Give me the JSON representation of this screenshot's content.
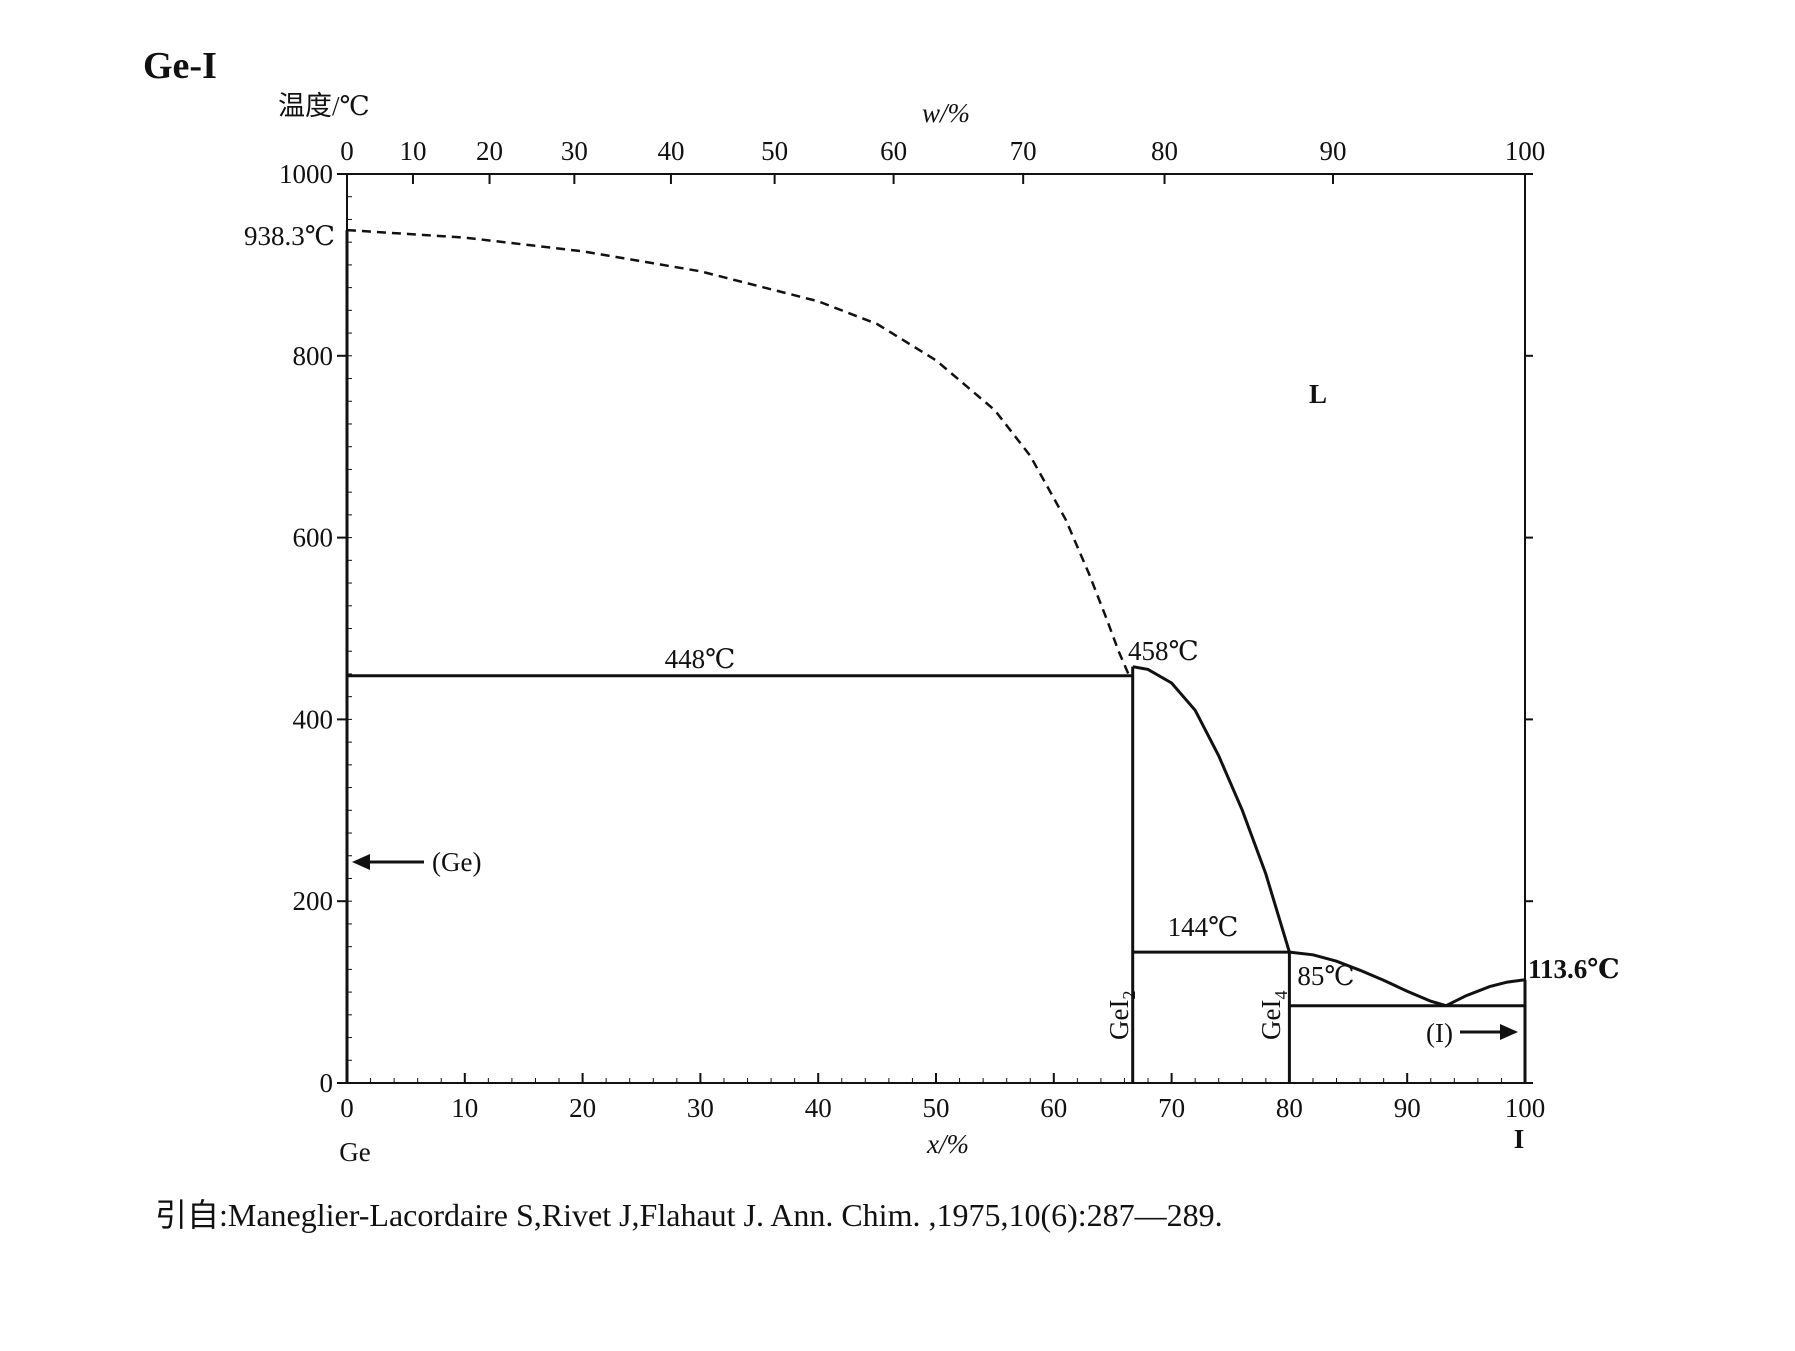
{
  "chart_data": {
    "type": "line",
    "title": "Ge-I",
    "ylabel": "温度/℃",
    "xlabel_top": "w/%",
    "xlabel_bottom": "x/%",
    "left_component": "Ge",
    "right_component": "I",
    "ylim": [
      0,
      1000
    ],
    "xlim": [
      0,
      100
    ],
    "grid": false,
    "y_ticks": [
      0,
      200,
      400,
      600,
      800,
      1000
    ],
    "y_tick_labels": [
      "0",
      "200",
      "400",
      "600",
      "800",
      "1000"
    ],
    "x_bottom_ticks": [
      0,
      10,
      20,
      30,
      40,
      50,
      60,
      70,
      80,
      90,
      100
    ],
    "x_bottom_tick_labels": [
      "0",
      "10",
      "20",
      "30",
      "40",
      "50",
      "60",
      "70",
      "80",
      "90",
      "100"
    ],
    "x_top_ticks": [
      0,
      10,
      20,
      30,
      40,
      50,
      60,
      70,
      80,
      90,
      100
    ],
    "x_top_tick_labels": [
      "0",
      "10",
      "20",
      "30",
      "40",
      "50",
      "60",
      "70",
      "80",
      "90",
      "100"
    ],
    "x_top_ticks_at_x": [
      0,
      5.6,
      12.1,
      19.3,
      27.5,
      36.3,
      46.4,
      57.4,
      69.4,
      83.7,
      100
    ],
    "series": [
      {
        "style": "dashed",
        "x": [
          0,
          10,
          20,
          30,
          40,
          45,
          50,
          55,
          58,
          61,
          63,
          64.5,
          65.5,
          66.4
        ],
        "y": [
          938.3,
          930,
          915,
          893,
          860,
          835,
          795,
          740,
          690,
          620,
          560,
          510,
          475,
          448
        ]
      },
      {
        "style": "solid",
        "x": [
          0,
          66.7
        ],
        "y": [
          448,
          448
        ]
      },
      {
        "style": "solid",
        "x": [
          66.7,
          68,
          70,
          72,
          74,
          76,
          78,
          80
        ],
        "y": [
          458,
          455,
          440,
          410,
          360,
          300,
          230,
          144
        ]
      },
      {
        "style": "solid",
        "x": [
          66.7,
          80
        ],
        "y": [
          144,
          144
        ]
      },
      {
        "style": "solid",
        "x": [
          80,
          82,
          84,
          86,
          88,
          90,
          92,
          93.3
        ],
        "y": [
          144,
          141,
          134,
          124,
          113,
          101,
          90,
          85
        ]
      },
      {
        "style": "solid",
        "x": [
          93.3,
          95,
          97,
          98.5,
          100
        ],
        "y": [
          85,
          96,
          106,
          111,
          113.6
        ]
      },
      {
        "style": "solid",
        "x": [
          80,
          100
        ],
        "y": [
          85,
          85
        ]
      },
      {
        "style": "solid",
        "x": [
          66.7,
          66.7
        ],
        "y": [
          0,
          458
        ]
      },
      {
        "style": "solid",
        "x": [
          80,
          80
        ],
        "y": [
          0,
          144
        ]
      },
      {
        "style": "solid",
        "x": [
          0,
          0
        ],
        "y": [
          0,
          938.3
        ]
      },
      {
        "style": "solid",
        "x": [
          100,
          100
        ],
        "y": [
          0,
          113.6
        ]
      }
    ],
    "annotations": {
      "melt_ge": "938.3℃",
      "eutectic_448": "448℃",
      "melt_gei2": "458℃",
      "peritectic_144": "144℃",
      "eutectic_85": "85℃",
      "melt_i": "113.6℃",
      "phase_l": "L",
      "ss_ge": "(Ge)",
      "ss_i": "(I)",
      "gei2_main": "GeI",
      "gei2_sub": "2",
      "gei4_main": "GeI",
      "gei4_sub": "4"
    }
  },
  "citation": "引自:Maneglier-Lacordaire S,Rivet J,Flahaut J. Ann. Chim. ,1975,10(6):287—289."
}
